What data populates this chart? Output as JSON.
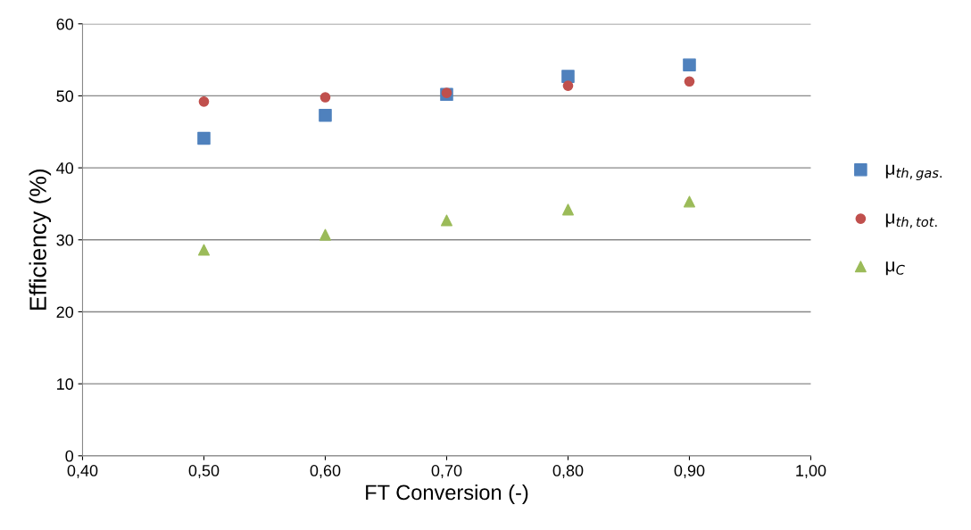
{
  "chart_data": {
    "type": "scatter",
    "xlabel": "FT Conversion (-)",
    "ylabel": "Efficiency (%)",
    "x": [
      0.5,
      0.6,
      0.7,
      0.8,
      0.9
    ],
    "series": [
      {
        "name": "μ$_{th,gas.}$",
        "color": "#4f81bd",
        "marker": "square",
        "values": [
          44.1,
          47.3,
          50.2,
          52.7,
          54.3
        ]
      },
      {
        "name": "μ$_{th,tot.}$",
        "color": "#c0504d",
        "marker": "circle",
        "values": [
          49.2,
          49.8,
          50.4,
          51.4,
          52.0
        ]
      },
      {
        "name": "μ$_{C}$",
        "color": "#9bbb59",
        "marker": "triangle",
        "values": [
          28.6,
          30.7,
          32.7,
          34.2,
          35.3
        ]
      }
    ],
    "xlim": [
      0.4,
      1.0
    ],
    "xticks": [
      {
        "value": 0.4,
        "label": "0,40"
      },
      {
        "value": 0.5,
        "label": "0,50"
      },
      {
        "value": 0.6,
        "label": "0,60"
      },
      {
        "value": 0.7,
        "label": "0,70"
      },
      {
        "value": 0.8,
        "label": "0,80"
      },
      {
        "value": 0.9,
        "label": "0,90"
      },
      {
        "value": 1.0,
        "label": "1,00"
      }
    ],
    "ylim": [
      0,
      60
    ],
    "yticks": [
      0,
      10,
      20,
      30,
      40,
      50,
      60
    ],
    "grid": "y",
    "legend": "right"
  }
}
